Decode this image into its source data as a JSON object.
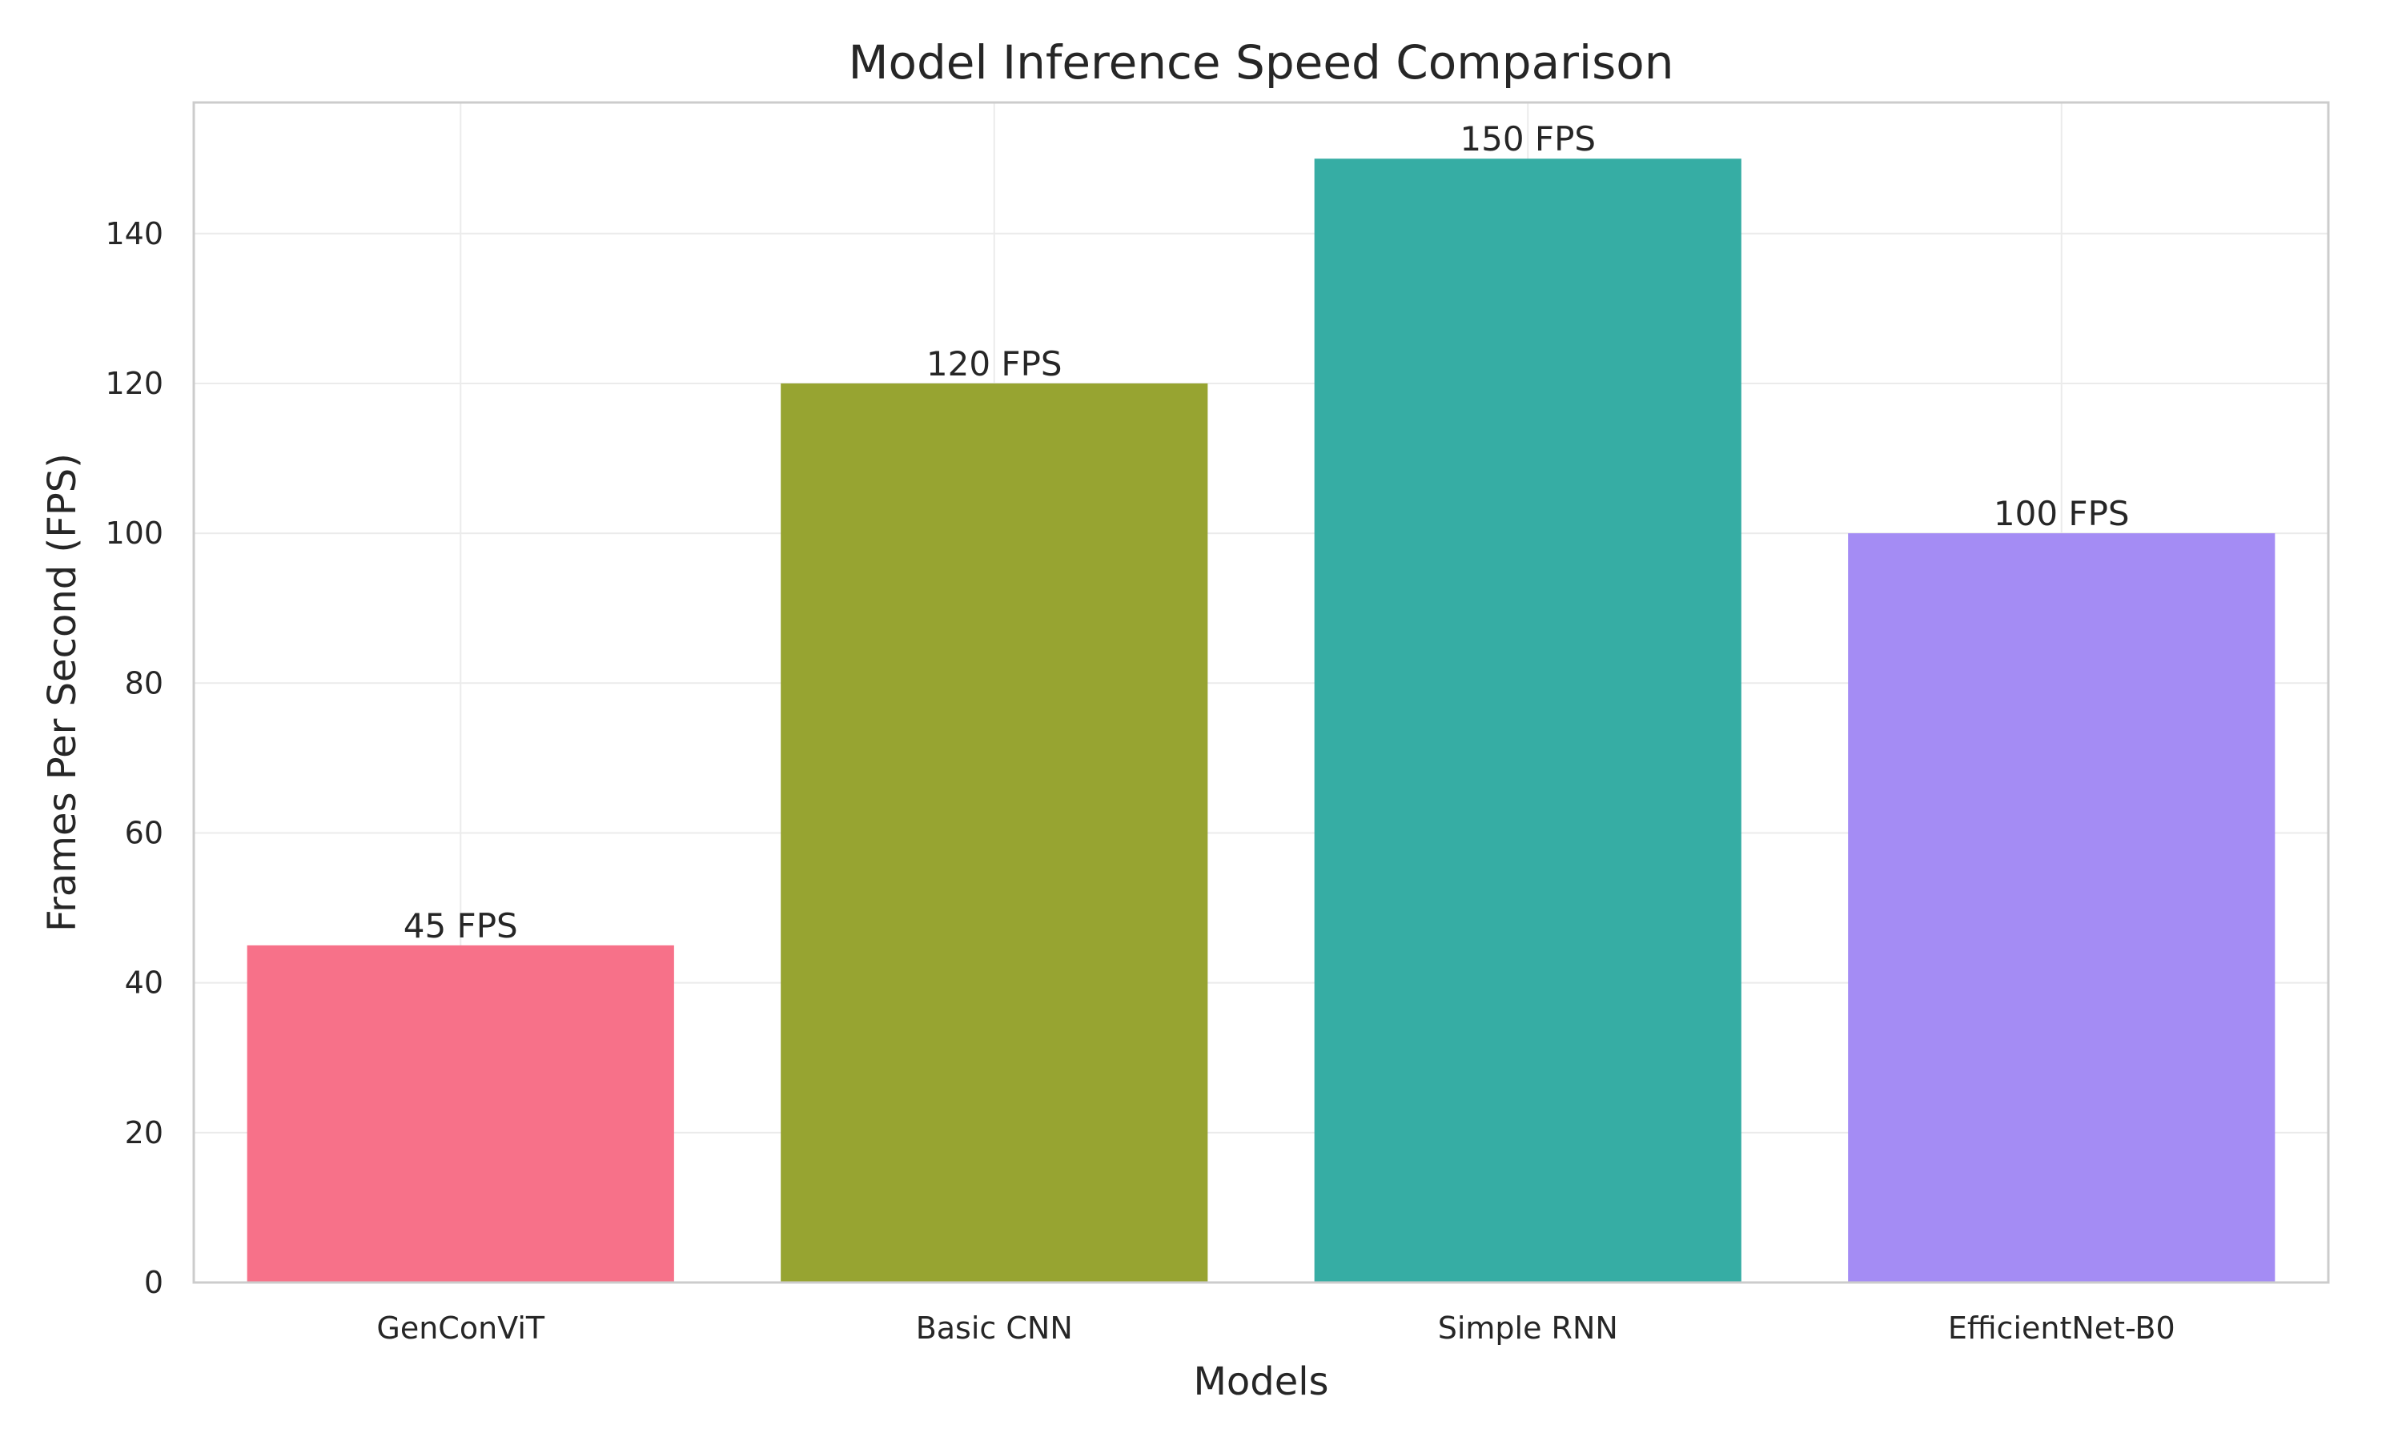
{
  "chart_data": {
    "type": "bar",
    "title": "Model Inference Speed Comparison",
    "xlabel": "Models",
    "ylabel": "Frames Per Second (FPS)",
    "categories": [
      "GenConViT",
      "Basic CNN",
      "Simple RNN",
      "EfficientNet-B0"
    ],
    "values": [
      45,
      120,
      150,
      100
    ],
    "data_labels": [
      "45 FPS",
      "120 FPS",
      "150 FPS",
      "100 FPS"
    ],
    "colors": [
      "#f77189",
      "#97a431",
      "#36ada4",
      "#a48cf4"
    ],
    "ylim": [
      0,
      157.5
    ],
    "yticks": [
      0,
      20,
      40,
      60,
      80,
      100,
      120,
      140
    ],
    "grid": true,
    "legend": false
  }
}
